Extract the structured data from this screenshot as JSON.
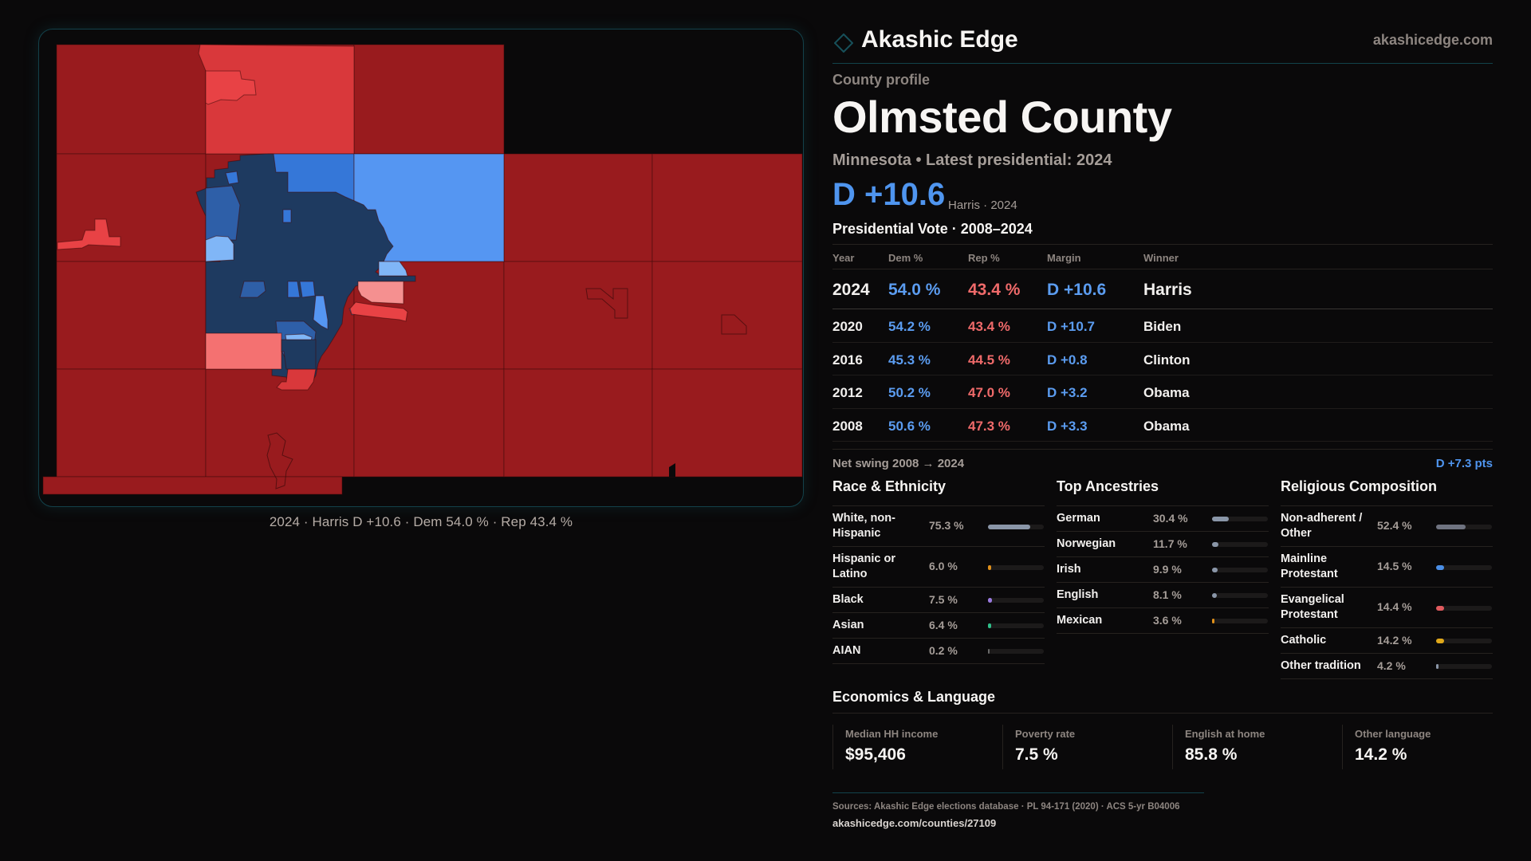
{
  "brand": {
    "name": "Akashic Edge",
    "url": "akashicedge.com",
    "logo_icon": "diamond-outline-icon",
    "accent": "#17505a"
  },
  "profile": {
    "eyebrow": "County profile",
    "county": "Olmsted County",
    "subtitle": "Minnesota • Latest presidential: 2024",
    "margin": "D +10.6",
    "margin_note": "Harris · 2024"
  },
  "colors": {
    "dem": "#5b9cf0",
    "rep": "#ef6a6a",
    "map_strong_rep": "#991b1e",
    "map_lean_rep": "#d9383b",
    "map_likely_rep": "#e84245",
    "map_tilt_rep": "#f47171",
    "map_faint_rep": "#f59090",
    "map_strong_dem": "#1e3a60",
    "map_likely_dem": "#2e5fa8",
    "map_lean_dem": "#3577d8",
    "map_tilt_dem": "#5596f2",
    "map_faint_dem": "#80b6f7"
  },
  "map": {
    "caption": "2024 · Harris D +10.6 · Dem 54.0 % · Rep 43.4 %"
  },
  "presidential": {
    "title": "Presidential Vote · 2008–2024",
    "headers": {
      "year": "Year",
      "dem": "Dem %",
      "rep": "Rep %",
      "margin": "Margin",
      "winner": "Winner"
    },
    "rows": [
      {
        "year": "2024",
        "dem": "54.0 %",
        "rep": "43.4 %",
        "margin": "D +10.6",
        "winner": "Harris"
      },
      {
        "year": "2020",
        "dem": "54.2 %",
        "rep": "43.4 %",
        "margin": "D +10.7",
        "winner": "Biden"
      },
      {
        "year": "2016",
        "dem": "45.3 %",
        "rep": "44.5 %",
        "margin": "D +0.8",
        "winner": "Clinton"
      },
      {
        "year": "2012",
        "dem": "50.2 %",
        "rep": "47.0 %",
        "margin": "D +3.2",
        "winner": "Obama"
      },
      {
        "year": "2008",
        "dem": "50.6 %",
        "rep": "47.3 %",
        "margin": "D +3.3",
        "winner": "Obama"
      }
    ],
    "swing_label": "Net swing 2008 → 2024",
    "swing_value": "D +7.3 pts"
  },
  "race": {
    "title": "Race & Ethnicity",
    "items": [
      {
        "label": "White, non-Hispanic",
        "pct": "75.3 %",
        "value": 75.3,
        "color": "#8a96a8"
      },
      {
        "label": "Hispanic or Latino",
        "pct": "6.0 %",
        "value": 6.0,
        "color": "#e0901a"
      },
      {
        "label": "Black",
        "pct": "7.5 %",
        "value": 7.5,
        "color": "#9a7be0"
      },
      {
        "label": "Asian",
        "pct": "6.4 %",
        "value": 6.4,
        "color": "#2fbf8a"
      },
      {
        "label": "AIAN",
        "pct": "0.2 %",
        "value": 0.2,
        "color": "#6a6a6a"
      }
    ]
  },
  "ancestry": {
    "title": "Top Ancestries",
    "items": [
      {
        "label": "German",
        "pct": "30.4 %",
        "value": 30.4,
        "color": "#8a96a8"
      },
      {
        "label": "Norwegian",
        "pct": "11.7 %",
        "value": 11.7,
        "color": "#8a96a8"
      },
      {
        "label": "Irish",
        "pct": "9.9 %",
        "value": 9.9,
        "color": "#8a96a8"
      },
      {
        "label": "English",
        "pct": "8.1 %",
        "value": 8.1,
        "color": "#8a96a8"
      },
      {
        "label": "Mexican",
        "pct": "3.6 %",
        "value": 3.6,
        "color": "#e0901a"
      }
    ]
  },
  "religion": {
    "title": "Religious Composition",
    "items": [
      {
        "label": "Non-adherent / Other",
        "pct": "52.4 %",
        "value": 52.4,
        "color": "#6f7380"
      },
      {
        "label": "Mainline Protestant",
        "pct": "14.5 %",
        "value": 14.5,
        "color": "#4a8ee6"
      },
      {
        "label": "Evangelical Protestant",
        "pct": "14.4 %",
        "value": 14.4,
        "color": "#e05a5e"
      },
      {
        "label": "Catholic",
        "pct": "14.2 %",
        "value": 14.2,
        "color": "#e0a81a"
      },
      {
        "label": "Other tradition",
        "pct": "4.2 %",
        "value": 4.2,
        "color": "#8a96a8"
      }
    ]
  },
  "economics": {
    "title": "Economics & Language",
    "cards": [
      {
        "label": "Median HH income",
        "value": "$95,406"
      },
      {
        "label": "Poverty rate",
        "value": "7.5 %"
      },
      {
        "label": "English at home",
        "value": "85.8 %"
      },
      {
        "label": "Other language",
        "value": "14.2 %"
      }
    ]
  },
  "sources": {
    "text": "Sources: Akashic Edge elections database · PL 94-171 (2020) · ACS 5-yr B04006",
    "url": "akashicedge.com/counties/27109"
  }
}
